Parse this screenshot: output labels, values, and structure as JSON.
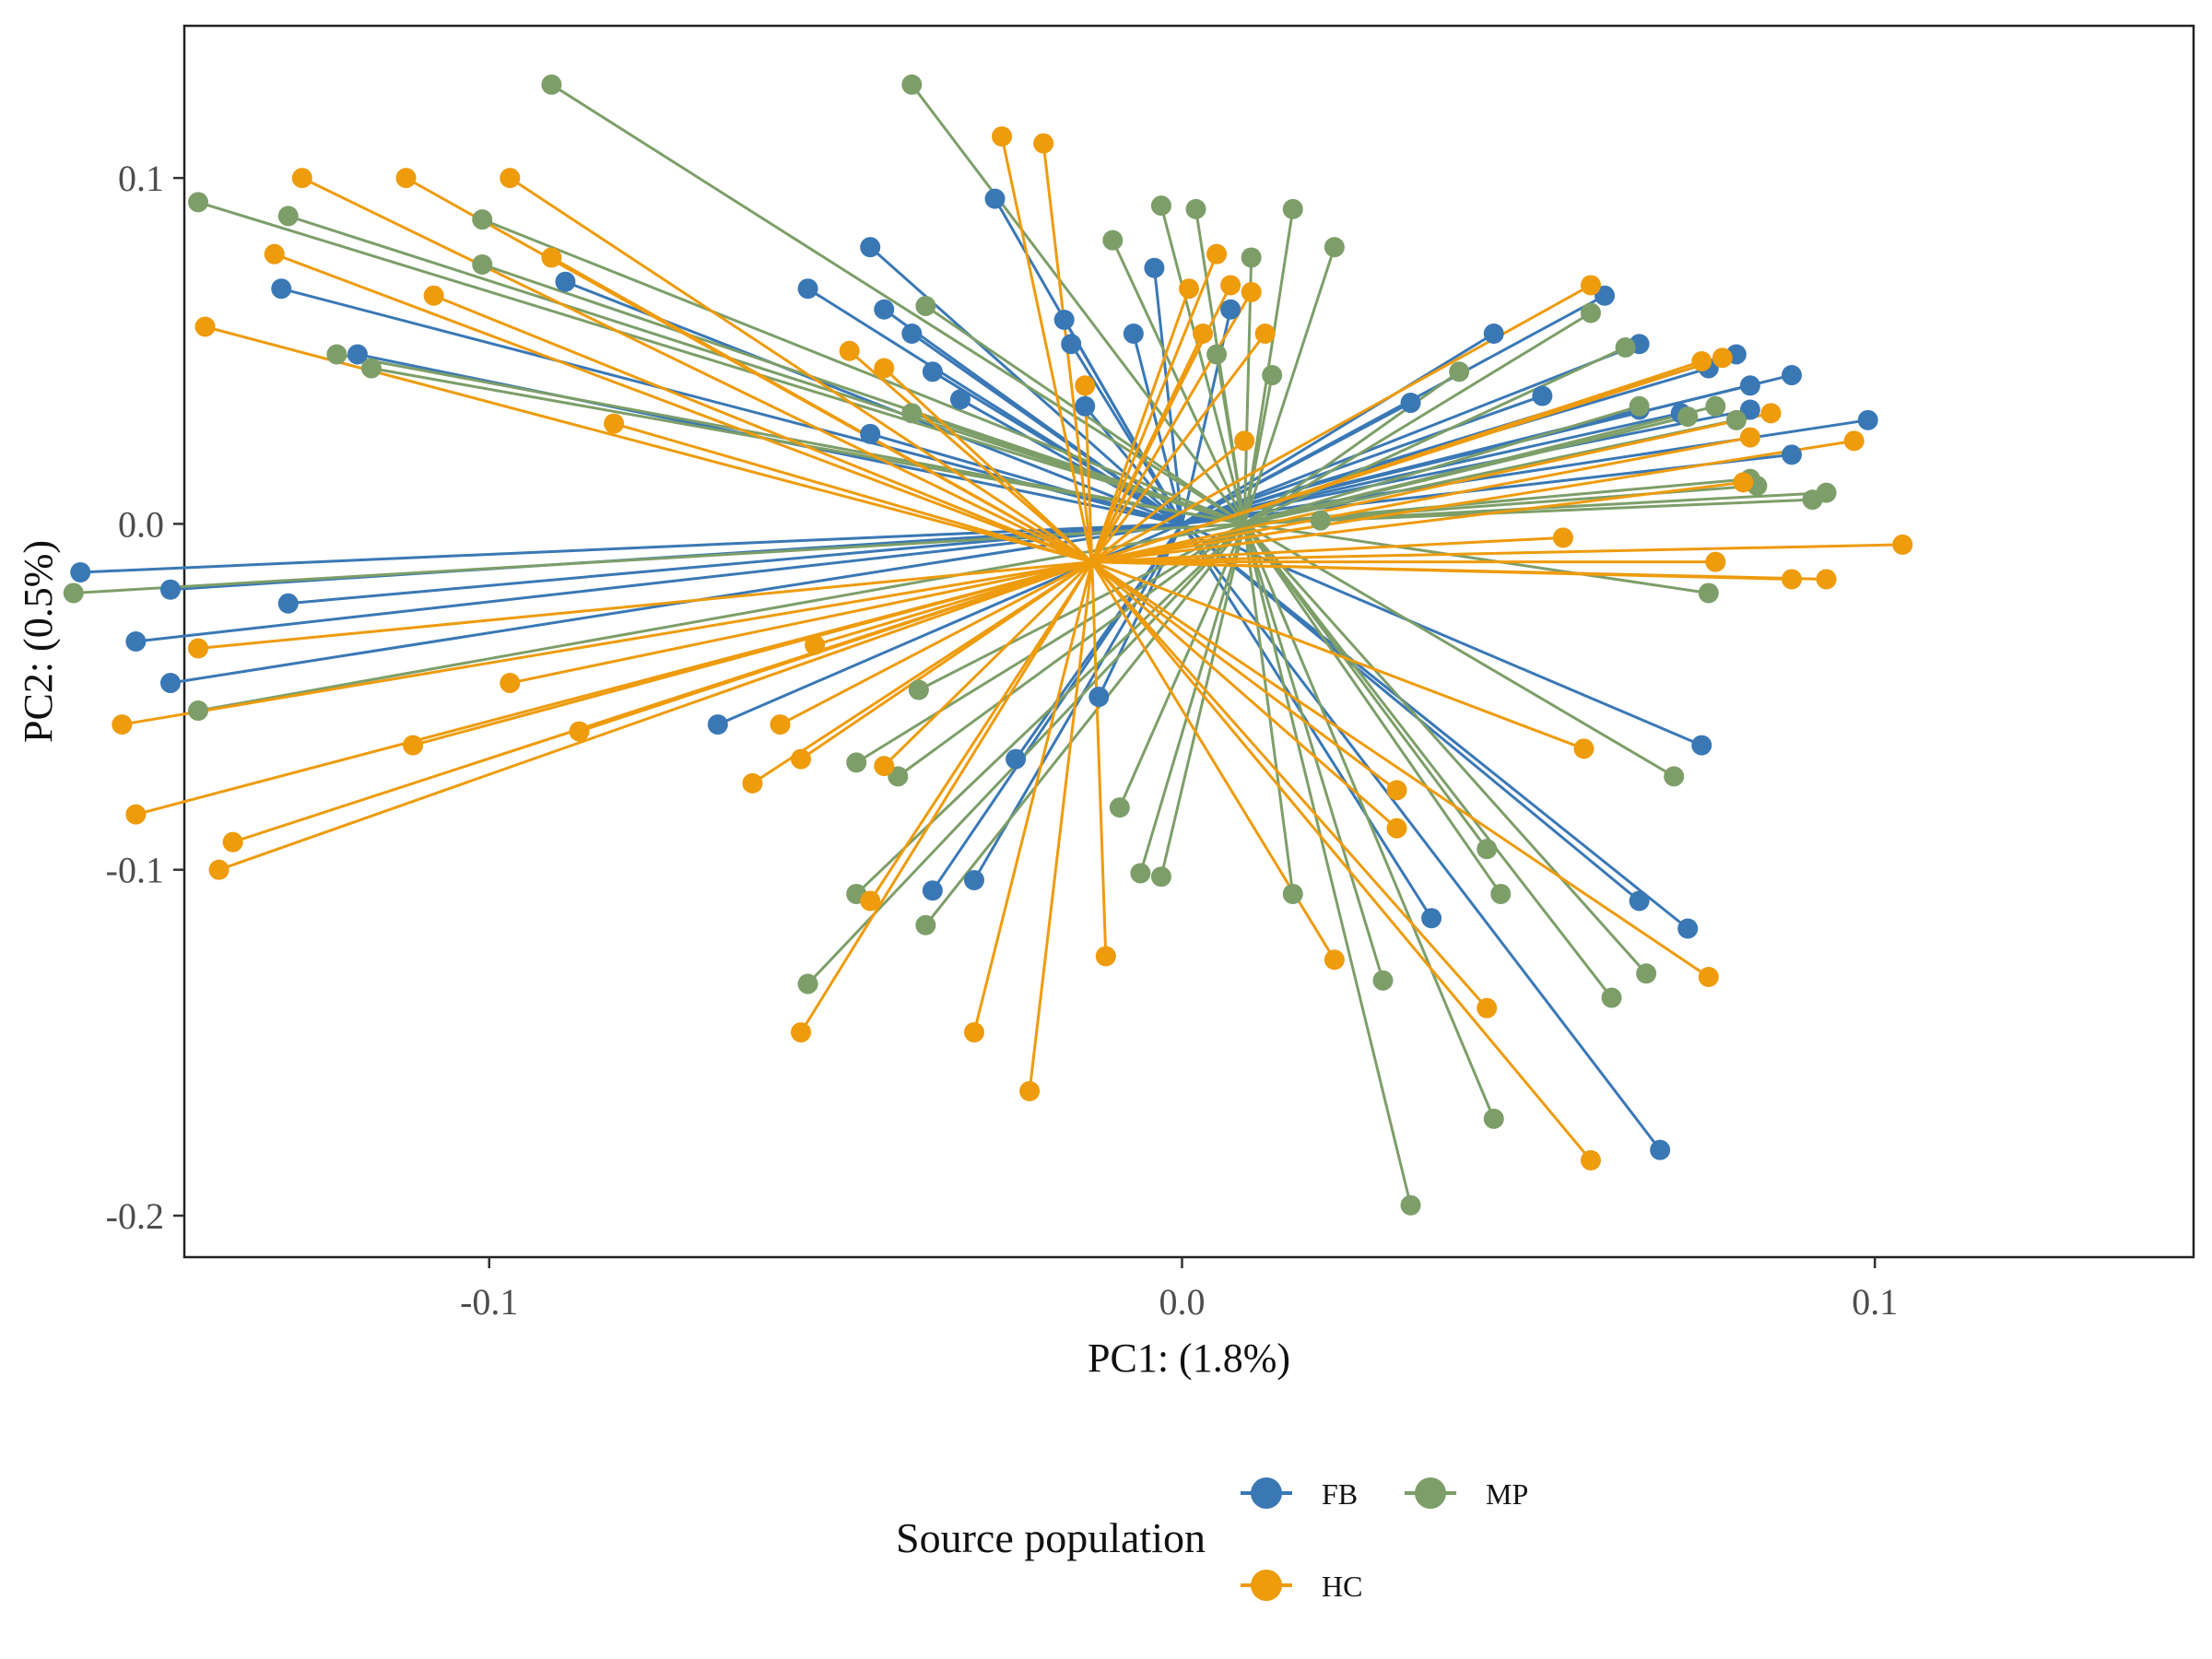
{
  "chart_data": {
    "type": "scatter",
    "title": "",
    "xlabel": "PC1: (1.8%)",
    "ylabel": "PC2: (0.5%)",
    "xlim": [
      -0.144,
      0.146
    ],
    "ylim": [
      -0.212,
      0.144
    ],
    "xticks": [
      -0.1,
      0.0,
      0.1
    ],
    "yticks": [
      0.1,
      0.0,
      -0.1,
      -0.2
    ],
    "xtick_labels": [
      "-0.1",
      "0.0",
      "0.1"
    ],
    "ytick_labels": [
      "0.1",
      "0.0",
      "-0.1",
      "-0.2"
    ],
    "grid": false,
    "legend": {
      "title": "Source population",
      "position": "bottom"
    },
    "series": [
      {
        "name": "FB",
        "color": "#3a78b5",
        "centroid": [
          0.0,
          0.0
        ],
        "points": [
          [
            -0.159,
            -0.014
          ],
          [
            -0.146,
            -0.019
          ],
          [
            -0.151,
            -0.034
          ],
          [
            -0.146,
            -0.046
          ],
          [
            -0.129,
            -0.023
          ],
          [
            -0.13,
            0.068
          ],
          [
            -0.119,
            0.049
          ],
          [
            -0.089,
            0.07
          ],
          [
            -0.067,
            -0.058
          ],
          [
            -0.054,
            0.068
          ],
          [
            -0.045,
            0.08
          ],
          [
            -0.043,
            0.062
          ],
          [
            -0.039,
            0.055
          ],
          [
            -0.036,
            0.044
          ],
          [
            -0.032,
            0.036
          ],
          [
            -0.027,
            0.094
          ],
          [
            -0.017,
            0.059
          ],
          [
            -0.016,
            0.052
          ],
          [
            -0.014,
            0.034
          ],
          [
            -0.007,
            0.055
          ],
          [
            -0.004,
            0.074
          ],
          [
            0.007,
            0.062
          ],
          [
            -0.045,
            0.026
          ],
          [
            -0.012,
            -0.05
          ],
          [
            -0.024,
            -0.068
          ],
          [
            -0.03,
            -0.103
          ],
          [
            -0.036,
            -0.106
          ],
          [
            0.036,
            -0.114
          ],
          [
            0.033,
            0.035
          ],
          [
            0.045,
            0.055
          ],
          [
            0.052,
            0.037
          ],
          [
            0.061,
            0.066
          ],
          [
            0.066,
            0.052
          ],
          [
            0.066,
            0.033
          ],
          [
            0.072,
            0.032
          ],
          [
            0.076,
            0.045
          ],
          [
            0.08,
            0.049
          ],
          [
            0.082,
            0.04
          ],
          [
            0.082,
            0.033
          ],
          [
            0.088,
            0.043
          ],
          [
            0.088,
            0.02
          ],
          [
            0.099,
            0.03
          ],
          [
            0.075,
            -0.064
          ],
          [
            0.066,
            -0.109
          ],
          [
            0.073,
            -0.117
          ],
          [
            0.069,
            -0.181
          ]
        ]
      },
      {
        "name": "MP",
        "color": "#7d9e69",
        "centroid": [
          0.009,
          0.0
        ],
        "points": [
          [
            -0.16,
            -0.02
          ],
          [
            -0.142,
            0.093
          ],
          [
            -0.129,
            0.089
          ],
          [
            -0.122,
            0.049
          ],
          [
            -0.117,
            0.045
          ],
          [
            -0.142,
            -0.054
          ],
          [
            -0.101,
            0.088
          ],
          [
            -0.101,
            0.075
          ],
          [
            -0.091,
            0.127
          ],
          [
            -0.039,
            0.127
          ],
          [
            -0.037,
            0.063
          ],
          [
            -0.039,
            0.032
          ],
          [
            -0.038,
            -0.048
          ],
          [
            -0.047,
            -0.069
          ],
          [
            -0.041,
            -0.073
          ],
          [
            -0.047,
            -0.107
          ],
          [
            -0.037,
            -0.116
          ],
          [
            -0.054,
            -0.133
          ],
          [
            -0.01,
            0.082
          ],
          [
            -0.003,
            0.092
          ],
          [
            0.002,
            0.091
          ],
          [
            0.005,
            0.049
          ],
          [
            0.01,
            0.077
          ],
          [
            0.013,
            0.043
          ],
          [
            0.016,
            0.091
          ],
          [
            0.022,
            0.08
          ],
          [
            0.02,
            0.001
          ],
          [
            0.04,
            0.044
          ],
          [
            0.059,
            0.061
          ],
          [
            0.064,
            0.051
          ],
          [
            0.066,
            0.034
          ],
          [
            0.073,
            0.031
          ],
          [
            0.077,
            0.034
          ],
          [
            0.08,
            0.03
          ],
          [
            0.082,
            0.013
          ],
          [
            0.083,
            0.011
          ],
          [
            0.091,
            0.007
          ],
          [
            0.093,
            0.009
          ],
          [
            0.076,
            -0.02
          ],
          [
            0.071,
            -0.073
          ],
          [
            -0.009,
            -0.082
          ],
          [
            -0.006,
            -0.101
          ],
          [
            -0.003,
            -0.102
          ],
          [
            0.016,
            -0.107
          ],
          [
            0.029,
            -0.132
          ],
          [
            0.044,
            -0.094
          ],
          [
            0.046,
            -0.107
          ],
          [
            0.045,
            -0.172
          ],
          [
            0.033,
            -0.197
          ],
          [
            0.062,
            -0.137
          ],
          [
            0.067,
            -0.13
          ]
        ]
      },
      {
        "name": "HC",
        "color": "#ee9b0c",
        "centroid": [
          -0.013,
          -0.011
        ],
        "points": [
          [
            -0.153,
            -0.058
          ],
          [
            -0.151,
            -0.084
          ],
          [
            -0.142,
            -0.036
          ],
          [
            -0.141,
            0.057
          ],
          [
            -0.131,
            0.078
          ],
          [
            -0.127,
            0.1
          ],
          [
            -0.137,
            -0.092
          ],
          [
            -0.139,
            -0.1
          ],
          [
            -0.111,
            -0.064
          ],
          [
            -0.108,
            0.066
          ],
          [
            -0.112,
            0.1
          ],
          [
            -0.097,
            0.1
          ],
          [
            -0.097,
            -0.046
          ],
          [
            -0.091,
            0.077
          ],
          [
            -0.087,
            -0.06
          ],
          [
            -0.082,
            0.029
          ],
          [
            -0.062,
            -0.075
          ],
          [
            -0.058,
            -0.058
          ],
          [
            -0.055,
            -0.068
          ],
          [
            -0.053,
            -0.035
          ],
          [
            -0.048,
            0.05
          ],
          [
            -0.043,
            0.045
          ],
          [
            -0.043,
            -0.07
          ],
          [
            -0.045,
            -0.109
          ],
          [
            -0.055,
            -0.147
          ],
          [
            -0.03,
            -0.147
          ],
          [
            -0.022,
            -0.164
          ],
          [
            -0.026,
            0.112
          ],
          [
            -0.02,
            0.11
          ],
          [
            -0.014,
            0.04
          ],
          [
            -0.011,
            -0.125
          ],
          [
            0.001,
            0.068
          ],
          [
            0.003,
            0.055
          ],
          [
            0.005,
            0.078
          ],
          [
            0.007,
            0.069
          ],
          [
            0.01,
            0.067
          ],
          [
            0.012,
            0.055
          ],
          [
            0.009,
            0.024
          ],
          [
            0.022,
            -0.126
          ],
          [
            0.031,
            -0.077
          ],
          [
            0.031,
            -0.088
          ],
          [
            0.044,
            -0.14
          ],
          [
            0.055,
            -0.004
          ],
          [
            0.058,
            -0.065
          ],
          [
            0.059,
            0.069
          ],
          [
            0.059,
            -0.184
          ],
          [
            0.075,
            0.047
          ],
          [
            0.078,
            0.048
          ],
          [
            0.081,
            0.012
          ],
          [
            0.082,
            0.025
          ],
          [
            0.085,
            0.032
          ],
          [
            0.077,
            -0.011
          ],
          [
            0.088,
            -0.016
          ],
          [
            0.093,
            -0.016
          ],
          [
            0.097,
            0.024
          ],
          [
            0.104,
            -0.006
          ],
          [
            0.076,
            -0.131
          ]
        ]
      }
    ]
  }
}
